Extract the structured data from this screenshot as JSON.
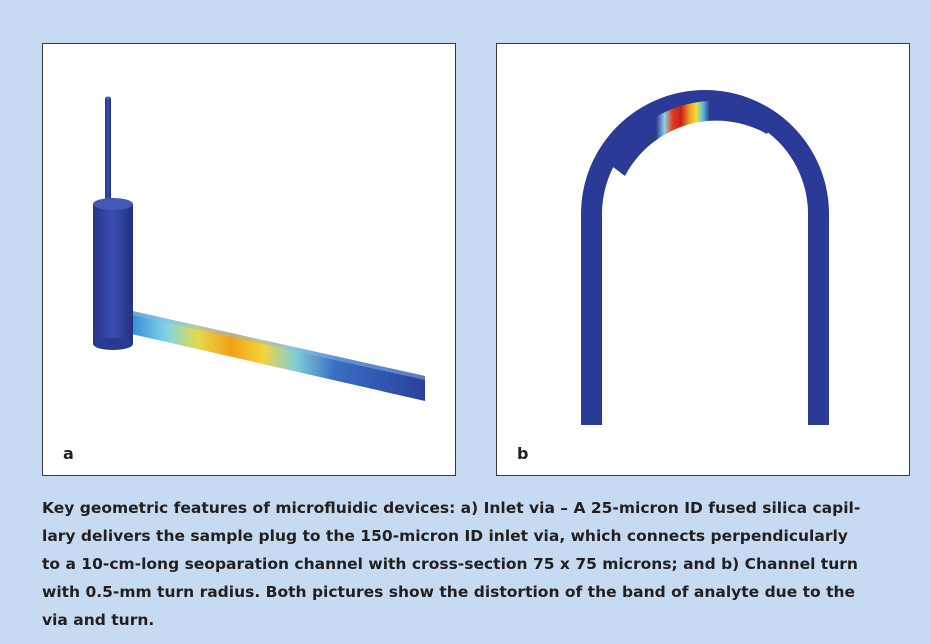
{
  "figure": {
    "panels": [
      {
        "label": "a"
      },
      {
        "label": "b"
      }
    ],
    "caption": {
      "lines": [
        "Key geometric features of microfluidic devices: a) Inlet via – A 25-micron ID fused silica capil-",
        "lary delivers the sample plug to the 150-micron ID inlet via, which connects perpendicularly",
        "to a 10-cm-long seoparation channel with cross-section 75 x 75 microns; and b) Channel turn",
        "with 0.5-mm turn radius. Both pictures show the distortion of the band of analyte due to the",
        "via and turn."
      ]
    }
  }
}
